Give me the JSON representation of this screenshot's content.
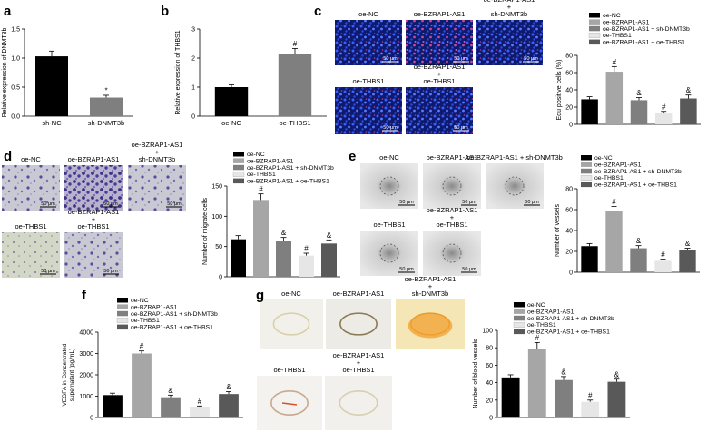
{
  "colors": {
    "oe_nc": "#000000",
    "oe_bzrap1": "#a6a6a6",
    "oe_bzrap1_shdnmt3b": "#7f7f7f",
    "oe_thbs1": "#e6e6e6",
    "oe_bzrap1_oethbs1": "#595959",
    "panel_a_shnc": "#000000",
    "panel_a_shdnmt3b": "#7f7f7f",
    "panel_b_oenc": "#000000",
    "panel_b_oethbs1": "#7f7f7f"
  },
  "legend5": [
    "oe-NC",
    "oe-BZRAP1-AS1",
    "oe-BZRAP1-AS1 + sh-DNMT3b",
    "oe-THBS1",
    "oe-BZRAP1-AS1 + oe-THBS1"
  ],
  "panel_a": {
    "label": "a"
  },
  "panel_b": {
    "label": "b"
  },
  "panel_c": {
    "label": "c",
    "images": [
      {
        "title": "oe-NC",
        "scale": "50 μm"
      },
      {
        "title": "oe-BZRAP1-AS1",
        "scale": "50 μm"
      },
      {
        "title_lines": [
          "oe-BZRAP1-AS1",
          "+",
          "sh-DNMT3b"
        ],
        "scale": "50 μm"
      },
      {
        "title": "oe-THBS1",
        "scale": "50 μm"
      },
      {
        "title_lines": [
          "oe-BZRAP1-AS1",
          "+",
          "oe-THBS1"
        ],
        "scale": "50 μm"
      }
    ]
  },
  "panel_d": {
    "label": "d",
    "images": [
      {
        "title": "oe-NC",
        "scale": "50 μm"
      },
      {
        "title": "oe-BZRAP1-AS1",
        "scale": "50 μm"
      },
      {
        "title_lines": [
          "oe-BZRAP1-AS1",
          "+",
          "sh-DNMT3b"
        ],
        "scale": "50 μm"
      },
      {
        "title": "oe-THBS1",
        "scale": "50 μm"
      },
      {
        "title_lines": [
          "oe-BZRAP1-AS1",
          "+",
          "oe-THBS1"
        ],
        "scale": "50 μm"
      }
    ]
  },
  "panel_e": {
    "label": "e",
    "images": [
      {
        "title": "oe-NC",
        "scale": "50 μm"
      },
      {
        "title": "oe-BZRAP1-AS1",
        "scale": "50 μm"
      },
      {
        "title": "oe-BZRAP1-AS1 + sh-DNMT3b",
        "scale": "50 μm"
      },
      {
        "title": "oe-THBS1",
        "scale": "50 μm"
      },
      {
        "title_lines": [
          "oe-BZRAP1-AS1",
          "+",
          "oe-THBS1"
        ],
        "scale": "50 μm"
      }
    ]
  },
  "panel_f": {
    "label": "f"
  },
  "panel_g": {
    "label": "g",
    "images": [
      {
        "title": "oe-NC"
      },
      {
        "title": "oe-BZRAP1-AS1"
      },
      {
        "title_lines": [
          "oe-BZRAP1-AS1",
          "+",
          "sh-DNMT3b"
        ]
      },
      {
        "title": "oe-THBS1"
      },
      {
        "title_lines": [
          "oe-BZRAP1-AS1",
          "+",
          "oe-THBS1"
        ]
      }
    ]
  },
  "chart_data": [
    {
      "id": "a",
      "type": "bar",
      "categories": [
        "sh-NC",
        "sh-DNMT3b"
      ],
      "values": [
        1.03,
        0.32
      ],
      "errors": [
        0.09,
        0.04
      ],
      "marks": [
        "",
        "*"
      ],
      "ylabel": "Relative expression of DNMT3b",
      "ylim": [
        0,
        1.5
      ],
      "yticks": [
        0,
        0.5,
        1.0,
        1.5
      ],
      "ytick_labels": [
        "0.0",
        "0.5",
        "1.0",
        "1.5"
      ]
    },
    {
      "id": "b",
      "type": "bar",
      "categories": [
        "oe-NC",
        "oe-THBS1"
      ],
      "values": [
        1.0,
        2.15
      ],
      "errors": [
        0.08,
        0.18
      ],
      "marks": [
        "",
        "#"
      ],
      "ylabel": "Relative expression of THBS1",
      "ylim": [
        0,
        3
      ],
      "yticks": [
        0,
        1,
        2,
        3
      ],
      "ytick_labels": [
        "0",
        "1",
        "2",
        "3"
      ]
    },
    {
      "id": "c",
      "type": "bar",
      "values": [
        29,
        61,
        28,
        13,
        30
      ],
      "errors": [
        3,
        6,
        3,
        2,
        4
      ],
      "marks": [
        "",
        "#",
        "&",
        "#",
        "&"
      ],
      "ylabel": "Edu positive cells (%)",
      "ylim": [
        0,
        80
      ],
      "yticks": [
        0,
        20,
        40,
        60,
        80
      ],
      "ytick_labels": [
        "0",
        "20",
        "40",
        "60",
        "80"
      ],
      "legend_position": "top"
    },
    {
      "id": "d",
      "type": "bar",
      "values": [
        62,
        127,
        59,
        35,
        55
      ],
      "errors": [
        6,
        10,
        6,
        4,
        6
      ],
      "marks": [
        "",
        "#",
        "&",
        "#",
        "&"
      ],
      "ylabel": "Number of migrate cells",
      "ylim": [
        0,
        150
      ],
      "yticks": [
        0,
        50,
        100,
        150
      ],
      "ytick_labels": [
        "0",
        "50",
        "100",
        "150"
      ],
      "legend_position": "top"
    },
    {
      "id": "e",
      "type": "bar",
      "values": [
        25,
        59,
        23,
        11,
        21
      ],
      "errors": [
        2.5,
        4,
        2.5,
        1.5,
        2
      ],
      "marks": [
        "",
        "#",
        "&",
        "#",
        "&"
      ],
      "ylabel": "Number of vessels",
      "ylim": [
        0,
        80
      ],
      "yticks": [
        0,
        20,
        40,
        60,
        80
      ],
      "ytick_labels": [
        "0",
        "20",
        "40",
        "60",
        "80"
      ],
      "legend_position": "top"
    },
    {
      "id": "f",
      "type": "bar",
      "values": [
        1050,
        3000,
        950,
        480,
        1100
      ],
      "errors": [
        90,
        120,
        100,
        60,
        110
      ],
      "marks": [
        "",
        "#",
        "&",
        "#",
        "&"
      ],
      "ylabel_lines": [
        "VEGFA in Concentrated",
        "supernatant (pg/mL)"
      ],
      "ylim": [
        0,
        4000
      ],
      "yticks": [
        0,
        1000,
        2000,
        3000,
        4000
      ],
      "ytick_labels": [
        "0",
        "1000",
        "2000",
        "3000",
        "4000"
      ],
      "legend_position": "top"
    },
    {
      "id": "g",
      "type": "bar",
      "values": [
        46,
        79,
        43,
        18,
        41
      ],
      "errors": [
        3,
        7,
        4,
        2,
        3
      ],
      "marks": [
        "",
        "#",
        "&",
        "#",
        "&"
      ],
      "ylabel": "Number of blood vessels",
      "ylim": [
        0,
        100
      ],
      "yticks": [
        0,
        20,
        40,
        60,
        80,
        100
      ],
      "ytick_labels": [
        "0",
        "20",
        "40",
        "60",
        "80",
        "100"
      ],
      "legend_position": "top"
    }
  ]
}
